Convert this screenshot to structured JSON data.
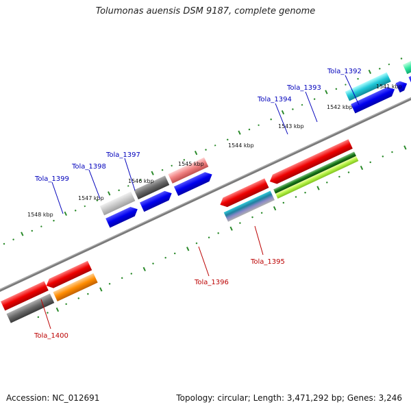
{
  "title": "Tolumonas auensis DSM 9187, complete genome",
  "accession": "Accession: NC_012691",
  "summary": "Topology: circular; Length: 3,471,292 bp; Genes: 3,246",
  "colors": {
    "fwd_label": "#0000bb",
    "rev_label": "#bb0000",
    "ruler_tick": "#2a8a2a",
    "backbone": "#7a7a7a"
  },
  "ruler_labels": [
    "1541 kbp",
    "1542 kbp",
    "1543 kbp",
    "1544 kbp",
    "1545 kbp",
    "1546 kbp",
    "1547 kbp",
    "1548 kbp"
  ],
  "gene_labels": {
    "tola_1392": "Tola_1392",
    "tola_1393": "Tola_1393",
    "tola_1394": "Tola_1394",
    "tola_1395": "Tola_1395",
    "tola_1396": "Tola_1396",
    "tola_1397": "Tola_1397",
    "tola_1398": "Tola_1398",
    "tola_1399": "Tola_1399",
    "tola_1400": "Tola_1400"
  }
}
